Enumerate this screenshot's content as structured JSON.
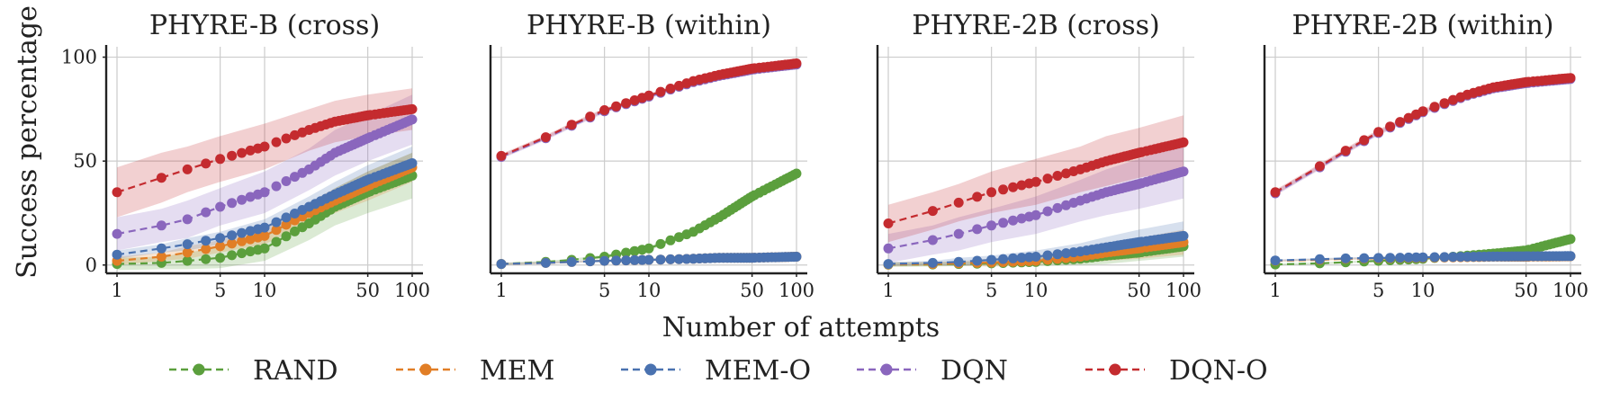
{
  "chart_data": {
    "type": "line",
    "ylabel": "Success percentage",
    "xlabel": "Number of attempts",
    "xscale": "log",
    "xlim": [
      1,
      100
    ],
    "ylim": [
      -4,
      105
    ],
    "xticks": [
      1,
      5,
      10,
      50,
      100
    ],
    "xtick_labels": [
      "1",
      "5",
      "10",
      "50",
      "100"
    ],
    "yticks": [
      0,
      50,
      100
    ],
    "ytick_labels": [
      "0",
      "50",
      "100"
    ],
    "grid": true,
    "legend_position": "bottom-center",
    "legend": [
      {
        "name": "RAND",
        "color": "#5b9f3d"
      },
      {
        "name": "MEM",
        "color": "#e17e26"
      },
      {
        "name": "MEM-O",
        "color": "#4a72b0"
      },
      {
        "name": "DQN",
        "color": "#8a66bd"
      },
      {
        "name": "DQN-O",
        "color": "#c42b2f"
      }
    ],
    "panels": [
      {
        "title": "PHYRE-B (cross)",
        "show_yticks": true,
        "x": [
          1,
          2,
          3,
          5,
          10,
          20,
          30,
          50,
          100
        ],
        "series": [
          {
            "name": "RAND",
            "values": [
              0.5,
              1,
              2,
              3.5,
              8,
              20,
              28,
              35,
              43
            ],
            "band": [
              3,
              3,
              4,
              5,
              6,
              8,
              9,
              10,
              11
            ]
          },
          {
            "name": "MEM",
            "values": [
              2,
              4,
              6,
              9,
              14,
              25,
              31,
              38,
              47
            ],
            "band": [
              2,
              2,
              3,
              3,
              4,
              5,
              6,
              7,
              7
            ]
          },
          {
            "name": "MEM-O",
            "values": [
              5,
              8,
              10,
              13,
              18,
              28,
              34,
              41,
              49
            ],
            "band": [
              2,
              2,
              3,
              3,
              4,
              5,
              6,
              7,
              8
            ]
          },
          {
            "name": "DQN",
            "values": [
              15,
              19,
              22,
              28,
              35,
              46,
              54,
              61,
              70
            ],
            "band": [
              8,
              8,
              9,
              9,
              10,
              10,
              11,
              11,
              12
            ]
          },
          {
            "name": "DQN-O",
            "values": [
              35,
              42,
              46,
              51,
              57,
              65,
              69,
              72,
              75
            ],
            "band": [
              12,
              12,
              11,
              11,
              11,
              10,
              10,
              10,
              10
            ]
          }
        ]
      },
      {
        "title": "PHYRE-B (within)",
        "show_yticks": false,
        "x": [
          1,
          2,
          3,
          5,
          10,
          20,
          30,
          50,
          100
        ],
        "series": [
          {
            "name": "RAND",
            "values": [
              0.5,
              1.5,
              2.5,
              4,
              8,
              16,
              23,
              33,
              44
            ],
            "band": [
              0.5,
              0.5,
              0.5,
              1,
              1,
              1,
              1,
              1,
              1
            ]
          },
          {
            "name": "MEM",
            "values": [
              0.5,
              1,
              1.5,
              2,
              2.5,
              3,
              3.5,
              3.5,
              4
            ],
            "band": [
              0.5,
              0.5,
              0.5,
              0.5,
              0.5,
              0.5,
              0.5,
              0.5,
              0.5
            ]
          },
          {
            "name": "MEM-O",
            "values": [
              0.5,
              1,
              1.5,
              2,
              2.5,
              3,
              3.5,
              3.5,
              4
            ],
            "band": [
              0.5,
              0.5,
              0.5,
              0.5,
              0.5,
              0.5,
              0.5,
              0.5,
              0.5
            ]
          },
          {
            "name": "DQN",
            "values": [
              52,
              61,
              67,
              74,
              81,
              88,
              91,
              94,
              96.5
            ],
            "band": [
              1,
              1,
              1,
              1,
              1,
              1,
              1,
              1,
              1
            ]
          },
          {
            "name": "DQN-O",
            "values": [
              52.5,
              61.5,
              67.5,
              74.5,
              81.5,
              88.5,
              91.5,
              94.5,
              97
            ],
            "band": [
              1,
              1,
              1,
              1,
              1,
              1,
              1,
              1,
              1
            ]
          }
        ]
      },
      {
        "title": "PHYRE-2B (cross)",
        "show_yticks": false,
        "x": [
          1,
          2,
          3,
          5,
          10,
          20,
          30,
          50,
          100
        ],
        "series": [
          {
            "name": "RAND",
            "values": [
              0.2,
              0.3,
              0.5,
              0.8,
              1.5,
              3,
              4.5,
              6,
              9
            ],
            "band": [
              1,
              1,
              1,
              1,
              2,
              3,
              4,
              4,
              5
            ]
          },
          {
            "name": "MEM",
            "values": [
              0.3,
              0.5,
              0.8,
              1.2,
              2,
              4,
              6,
              8,
              11
            ],
            "band": [
              1,
              1,
              1,
              2,
              2,
              3,
              4,
              5,
              6
            ]
          },
          {
            "name": "MEM-O",
            "values": [
              0.5,
              1,
              1.5,
              2.5,
              4,
              6.5,
              8.5,
              11,
              14
            ],
            "band": [
              1,
              1,
              2,
              2,
              3,
              4,
              5,
              6,
              7
            ]
          },
          {
            "name": "DQN",
            "values": [
              8,
              12,
              15,
              19,
              24,
              31,
              35,
              39,
              45
            ],
            "band": [
              7,
              7,
              8,
              8,
              9,
              10,
              11,
              12,
              13
            ]
          },
          {
            "name": "DQN-O",
            "values": [
              20,
              26,
              30,
              35,
              40,
              46,
              50,
              54,
              59
            ],
            "band": [
              9,
              9,
              9,
              10,
              11,
              11,
              12,
              12,
              13
            ]
          }
        ]
      },
      {
        "title": "PHYRE-2B (within)",
        "show_yticks": false,
        "x": [
          1,
          2,
          3,
          5,
          10,
          20,
          30,
          50,
          100
        ],
        "series": [
          {
            "name": "RAND",
            "values": [
              0.3,
              0.8,
              1.3,
              2,
              3,
              4.5,
              5.5,
              7,
              12.5
            ],
            "band": [
              0.5,
              0.5,
              0.5,
              0.5,
              0.5,
              0.5,
              0.5,
              0.5,
              0.5
            ]
          },
          {
            "name": "MEM",
            "values": [
              2,
              2.5,
              3,
              3.2,
              3.5,
              3.8,
              4,
              4,
              4.2
            ],
            "band": [
              0.5,
              0.5,
              0.5,
              0.5,
              0.5,
              0.5,
              0.5,
              0.5,
              0.5
            ]
          },
          {
            "name": "MEM-O",
            "values": [
              2.2,
              2.8,
              3.2,
              3.4,
              3.7,
              4,
              4.1,
              4.2,
              4.3
            ],
            "band": [
              0.5,
              0.5,
              0.5,
              0.5,
              0.5,
              0.5,
              0.5,
              0.5,
              0.5
            ]
          },
          {
            "name": "DQN",
            "values": [
              34.5,
              47,
              54.5,
              63.5,
              73.5,
              81.5,
              85,
              87.5,
              89.5
            ],
            "band": [
              1.2,
              1.2,
              1.2,
              1.2,
              1.2,
              1.2,
              1.2,
              1.2,
              1.2
            ]
          },
          {
            "name": "DQN-O",
            "values": [
              35,
              47.5,
              55,
              64,
              74,
              82,
              85.5,
              88,
              90
            ],
            "band": [
              1.2,
              1.2,
              1.2,
              1.2,
              1.2,
              1.2,
              1.2,
              1.2,
              1.2
            ]
          }
        ]
      }
    ]
  }
}
